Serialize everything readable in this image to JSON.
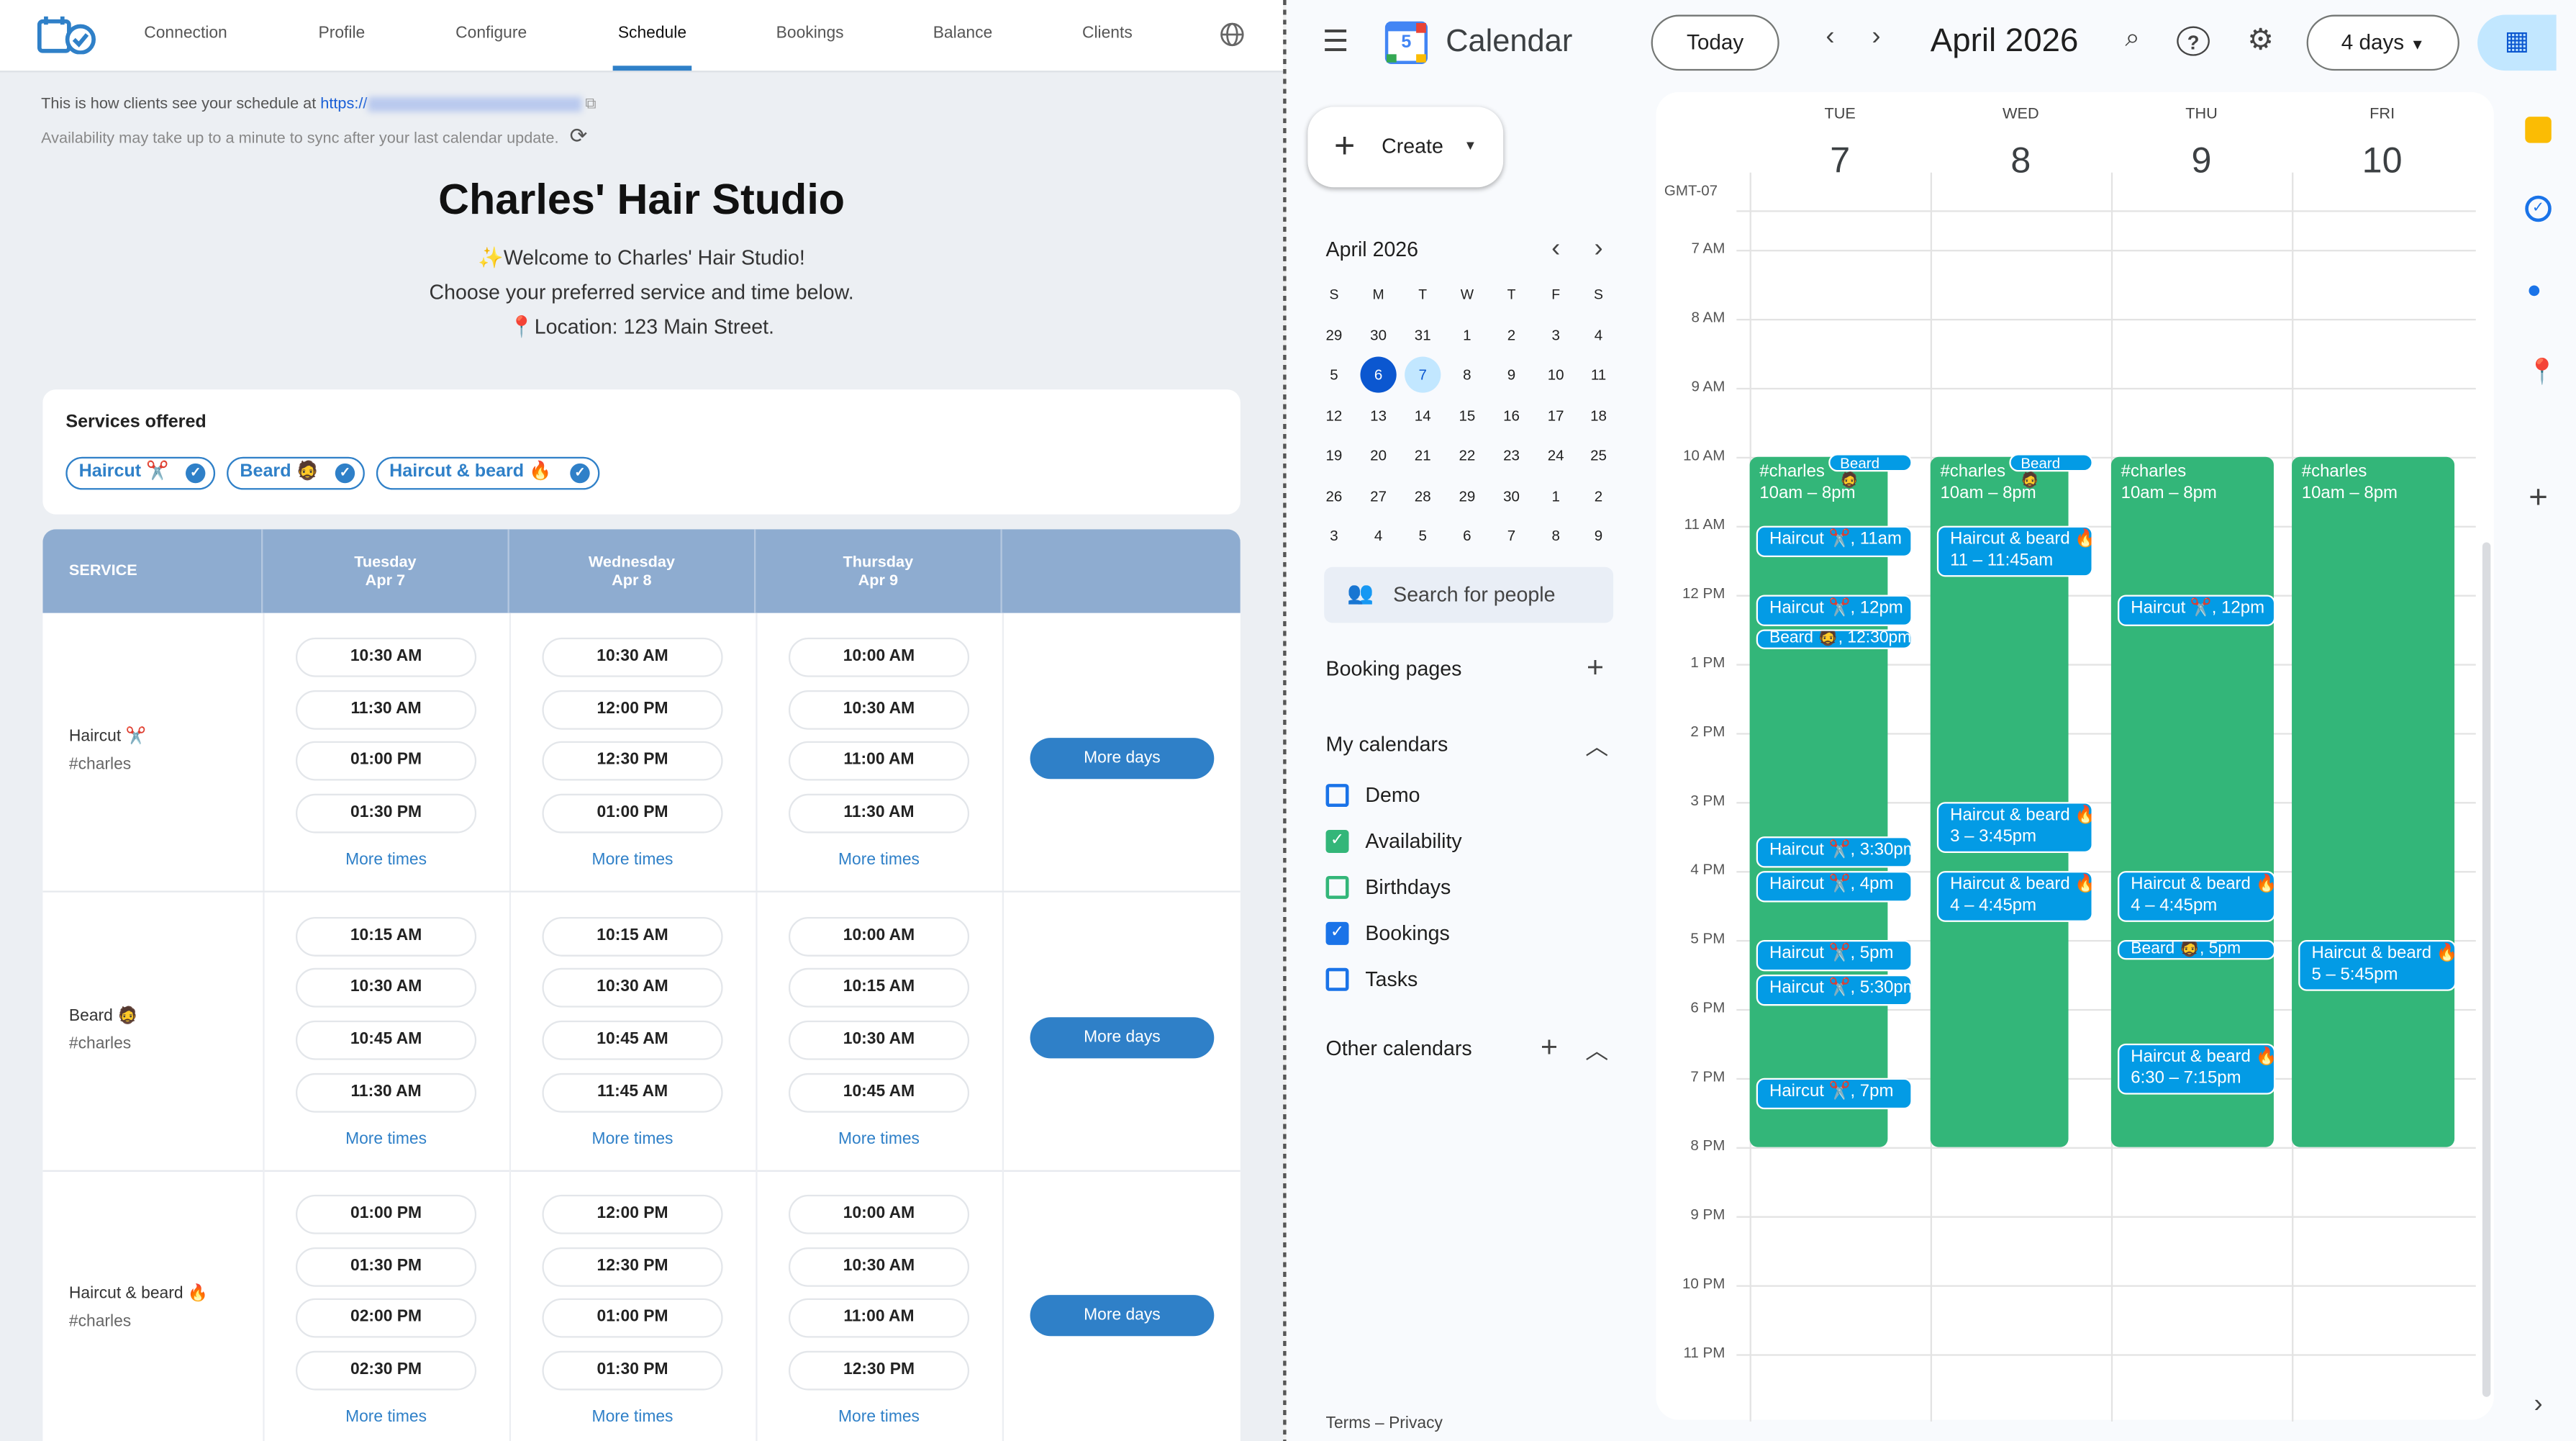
{
  "left": {
    "nav": {
      "tabs": [
        "Connection",
        "Profile",
        "Configure",
        "Schedule",
        "Bookings",
        "Balance",
        "Clients"
      ],
      "active_tab": "Schedule",
      "icons": {
        "logo": "calendar-check-logo",
        "language": "globe-icon"
      }
    },
    "info": {
      "share_text": "This is how clients see your schedule at",
      "url_prefix": "https://",
      "sync_text": "Availability may take up to a minute to sync after your last calendar update."
    },
    "profile": {
      "title": "Charles' Hair Studio",
      "welcome": "✨Welcome to Charles' Hair Studio!",
      "instructions": "Choose your preferred service and time below.",
      "location": "📍Location: 123 Main Street."
    },
    "services": {
      "heading": "Services offered",
      "chips": [
        "Haircut ✂️",
        "Beard 🧔",
        "Haircut & beard 🔥"
      ]
    },
    "table": {
      "service_header": "SERVICE",
      "days": [
        {
          "weekday": "Tuesday",
          "date": "Apr 7"
        },
        {
          "weekday": "Wednesday",
          "date": "Apr 8"
        },
        {
          "weekday": "Thursday",
          "date": "Apr 9"
        }
      ],
      "more_times_label": "More times",
      "more_days_label": "More days",
      "rows": [
        {
          "service": "Haircut ✂️",
          "tag": "#charles",
          "slots": [
            [
              "10:30 AM",
              "11:30 AM",
              "01:00 PM",
              "01:30 PM"
            ],
            [
              "10:30 AM",
              "12:00 PM",
              "12:30 PM",
              "01:00 PM"
            ],
            [
              "10:00 AM",
              "10:30 AM",
              "11:00 AM",
              "11:30 AM"
            ]
          ]
        },
        {
          "service": "Beard 🧔",
          "tag": "#charles",
          "slots": [
            [
              "10:15 AM",
              "10:30 AM",
              "10:45 AM",
              "11:30 AM"
            ],
            [
              "10:15 AM",
              "10:30 AM",
              "10:45 AM",
              "11:45 AM"
            ],
            [
              "10:00 AM",
              "10:15 AM",
              "10:30 AM",
              "10:45 AM"
            ]
          ]
        },
        {
          "service": "Haircut & beard 🔥",
          "tag": "#charles",
          "slots": [
            [
              "01:00 PM",
              "01:30 PM",
              "02:00 PM",
              "02:30 PM"
            ],
            [
              "12:00 PM",
              "12:30 PM",
              "01:00 PM",
              "01:30 PM"
            ],
            [
              "10:00 AM",
              "10:30 AM",
              "11:00 AM",
              "12:30 PM"
            ]
          ]
        }
      ]
    }
  },
  "right": {
    "app_name": "Calendar",
    "logo_day": "5",
    "today_label": "Today",
    "period_title": "April 2026",
    "view_label": "4 days",
    "create_label": "Create",
    "mini_calendar": {
      "title": "April 2026",
      "weekdays": [
        "S",
        "M",
        "T",
        "W",
        "T",
        "F",
        "S"
      ],
      "weeks": [
        [
          "29",
          "30",
          "31",
          "1",
          "2",
          "3",
          "4"
        ],
        [
          "5",
          "6",
          "7",
          "8",
          "9",
          "10",
          "11"
        ],
        [
          "12",
          "13",
          "14",
          "15",
          "16",
          "17",
          "18"
        ],
        [
          "19",
          "20",
          "21",
          "22",
          "23",
          "24",
          "25"
        ],
        [
          "26",
          "27",
          "28",
          "29",
          "30",
          "1",
          "2"
        ],
        [
          "3",
          "4",
          "5",
          "6",
          "7",
          "8",
          "9"
        ]
      ],
      "today": "6",
      "selected": "7"
    },
    "search_people_placeholder": "Search for people",
    "booking_pages_label": "Booking pages",
    "my_calendars_label": "My calendars",
    "my_calendars": [
      {
        "name": "Demo",
        "checked": false,
        "color": "#1a73e8"
      },
      {
        "name": "Availability",
        "checked": true,
        "color": "#33b679"
      },
      {
        "name": "Birthdays",
        "checked": false,
        "color": "#33b679"
      },
      {
        "name": "Bookings",
        "checked": true,
        "color": "#1a73e8"
      },
      {
        "name": "Tasks",
        "checked": false,
        "color": "#1a73e8"
      }
    ],
    "other_calendars_label": "Other calendars",
    "footer": "Terms – Privacy",
    "timezone": "GMT-07",
    "hours": [
      "7 AM",
      "8 AM",
      "9 AM",
      "10 AM",
      "11 AM",
      "12 PM",
      "1 PM",
      "2 PM",
      "3 PM",
      "4 PM",
      "5 PM",
      "6 PM",
      "7 PM",
      "8 PM",
      "9 PM",
      "10 PM",
      "11 PM"
    ],
    "days": [
      {
        "name": "TUE",
        "num": "7"
      },
      {
        "name": "WED",
        "num": "8"
      },
      {
        "name": "THU",
        "num": "9"
      },
      {
        "name": "FRI",
        "num": "10"
      }
    ],
    "availability": {
      "title": "#charles",
      "time": "10am – 8pm",
      "start": 10,
      "end": 20,
      "color": "#33b679"
    },
    "event_color": "#039be5",
    "top_chips": [
      {
        "day": 0,
        "label": "Beard 🧔"
      },
      {
        "day": 1,
        "label": "Beard 🧔"
      }
    ],
    "events": [
      {
        "day": 0,
        "start": 11,
        "end": 11.5,
        "label": "Haircut ✂️, 11am"
      },
      {
        "day": 0,
        "start": 12,
        "end": 12.5,
        "label": "Haircut ✂️, 12pm"
      },
      {
        "day": 0,
        "start": 12.5,
        "end": 12.75,
        "label": "Beard 🧔, 12:30pm"
      },
      {
        "day": 0,
        "start": 15.5,
        "end": 16,
        "label": "Haircut ✂️, 3:30pm"
      },
      {
        "day": 0,
        "start": 16,
        "end": 16.5,
        "label": "Haircut ✂️, 4pm"
      },
      {
        "day": 0,
        "start": 17,
        "end": 17.5,
        "label": "Haircut ✂️, 5pm"
      },
      {
        "day": 0,
        "start": 17.5,
        "end": 18,
        "label": "Haircut ✂️, 5:30pm"
      },
      {
        "day": 0,
        "start": 19,
        "end": 19.5,
        "label": "Haircut ✂️, 7pm"
      },
      {
        "day": 1,
        "start": 11,
        "end": 11.75,
        "label": "Haircut & beard 🔥",
        "time": "11 – 11:45am"
      },
      {
        "day": 1,
        "start": 15,
        "end": 15.75,
        "label": "Haircut & beard 🔥",
        "time": "3 – 3:45pm"
      },
      {
        "day": 1,
        "start": 16,
        "end": 16.75,
        "label": "Haircut & beard 🔥",
        "time": "4 – 4:45pm"
      },
      {
        "day": 2,
        "start": 12,
        "end": 12.5,
        "label": "Haircut ✂️, 12pm"
      },
      {
        "day": 2,
        "start": 16,
        "end": 16.75,
        "label": "Haircut & beard 🔥",
        "time": "4 – 4:45pm"
      },
      {
        "day": 2,
        "start": 17,
        "end": 17.25,
        "label": "Beard 🧔, 5pm"
      },
      {
        "day": 2,
        "start": 18.5,
        "end": 19.25,
        "label": "Haircut & beard 🔥",
        "time": "6:30 – 7:15pm"
      },
      {
        "day": 3,
        "start": 17,
        "end": 17.75,
        "label": "Haircut & beard 🔥",
        "time": "5 – 5:45pm"
      }
    ]
  }
}
